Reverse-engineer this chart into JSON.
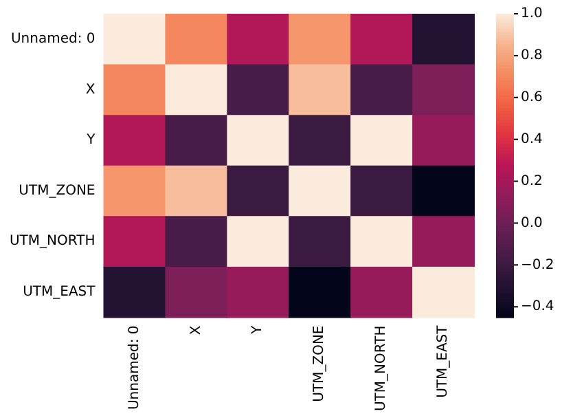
{
  "chart_data": {
    "type": "heatmap",
    "categories": [
      "Unnamed: 0",
      "X",
      "Y",
      "UTM_ZONE",
      "UTM_NORTH",
      "UTM_EAST"
    ],
    "y_categories": [
      "Unnamed: 0",
      "X",
      "Y",
      "UTM_ZONE",
      "UTM_NORTH",
      "UTM_EAST"
    ],
    "cells": [
      [
        1.0,
        0.7,
        0.25,
        0.75,
        0.25,
        -0.3
      ],
      [
        0.7,
        1.0,
        -0.15,
        0.88,
        -0.15,
        0.05
      ],
      [
        0.25,
        -0.15,
        1.0,
        -0.2,
        1.0,
        0.15
      ],
      [
        0.75,
        0.88,
        -0.2,
        1.0,
        -0.2,
        -0.45
      ],
      [
        0.25,
        -0.15,
        1.0,
        -0.2,
        1.0,
        0.15
      ],
      [
        -0.3,
        0.05,
        0.15,
        -0.45,
        0.15,
        1.0
      ]
    ],
    "clim": [
      -0.45,
      1.0
    ],
    "cticks": [
      {
        "value": -0.4,
        "label": "−0.4"
      },
      {
        "value": -0.2,
        "label": "−0.2"
      },
      {
        "value": 0,
        "label": "0.0"
      },
      {
        "value": 0.2,
        "label": "0.2"
      },
      {
        "value": 0.4,
        "label": "0.4"
      },
      {
        "value": 0.6,
        "label": "0.6"
      },
      {
        "value": 0.8,
        "label": "0.8"
      },
      {
        "value": 1.0,
        "label": "1.0"
      }
    ]
  }
}
